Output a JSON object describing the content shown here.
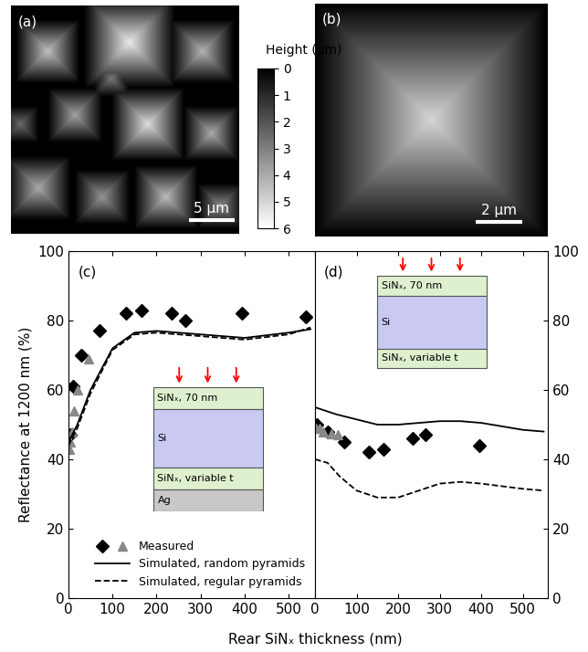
{
  "images": [
    {
      "label": "(a)",
      "scale_bar": {
        "length": 5,
        "label": "5 µm"
      }
    },
    {
      "label": "(b)",
      "scale_bar": {
        "length": 2,
        "label": "2 µm"
      }
    }
  ],
  "colorbar": {
    "label": "Height (µm)",
    "range": [
      0,
      6
    ],
    "ticks": [
      0,
      1,
      2,
      3,
      4,
      5,
      6
    ]
  },
  "chart_data": [
    {
      "type": "line",
      "label": "(c)",
      "xlabel": "Rear SiNₓ thickness (nm)",
      "ylabel": "Reflectance at 1200 nm (%)",
      "xlim": [
        0,
        560
      ],
      "xticks": [
        0,
        100,
        200,
        300,
        400,
        500
      ],
      "ylim": [
        0,
        100
      ],
      "yticks": [
        0,
        20,
        40,
        60,
        80,
        100
      ],
      "legend": "lower right",
      "layers": [
        "SiNₓ, 70 nm",
        "Si",
        "SiNₓ, variable t",
        "Ag"
      ],
      "series": [
        {
          "name": "Measured",
          "type": "scatter",
          "marker": "diamond",
          "color": "#000000",
          "x": [
            5,
            10,
            30,
            70,
            130,
            165,
            235,
            265,
            395,
            540
          ],
          "values": [
            47,
            61,
            70,
            77,
            82,
            83,
            82,
            80,
            82,
            81
          ]
        },
        {
          "name": "Measured",
          "type": "scatter",
          "marker": "triangle",
          "color": "#888888",
          "x": [
            2,
            5,
            8,
            12,
            20,
            45
          ],
          "values": [
            43,
            45,
            48,
            54,
            60,
            69
          ]
        },
        {
          "name": "Simulated, random pyramids",
          "type": "line",
          "line_style": "solid",
          "color": "#000000",
          "x": [
            0,
            20,
            50,
            100,
            150,
            200,
            300,
            400,
            500,
            550
          ],
          "values": [
            45,
            50,
            60,
            72,
            76.5,
            77,
            76,
            75,
            76.5,
            77.5
          ]
        },
        {
          "name": "Simulated, regular pyramids",
          "type": "line",
          "line_style": "dashed",
          "color": "#000000",
          "x": [
            0,
            20,
            50,
            100,
            150,
            200,
            300,
            400,
            500,
            550
          ],
          "values": [
            44,
            49,
            59,
            71.5,
            76,
            76.5,
            75.5,
            74.5,
            76,
            78
          ]
        }
      ]
    },
    {
      "type": "line",
      "label": "(d)",
      "xlim": [
        0,
        560
      ],
      "xticks": [
        0,
        100,
        200,
        300,
        400,
        500
      ],
      "ylim": [
        0,
        100
      ],
      "yticks": [
        0,
        20,
        40,
        60,
        80,
        100
      ],
      "layers": [
        "SiNₓ, 70 nm",
        "Si",
        "SiNₓ, variable t"
      ],
      "series": [
        {
          "name": "Measured",
          "type": "scatter",
          "marker": "diamond",
          "color": "#000000",
          "x": [
            5,
            30,
            70,
            130,
            165,
            235,
            265,
            395
          ],
          "values": [
            50,
            48,
            45,
            42,
            43,
            46,
            47,
            44
          ]
        },
        {
          "name": "Measured",
          "type": "scatter",
          "marker": "triangle",
          "color": "#888888",
          "x": [
            2,
            10,
            20,
            40,
            55
          ],
          "values": [
            49,
            49,
            48,
            47.5,
            47
          ]
        },
        {
          "name": "Simulated, random pyramids",
          "type": "line",
          "line_style": "solid",
          "color": "#000000",
          "x": [
            0,
            50,
            100,
            150,
            200,
            250,
            300,
            350,
            400,
            500,
            550
          ],
          "values": [
            55,
            53,
            51.5,
            50,
            50,
            50.5,
            51,
            51,
            50.5,
            48.5,
            48
          ]
        },
        {
          "name": "Simulated, regular pyramids",
          "type": "line",
          "line_style": "dashed",
          "color": "#000000",
          "x": [
            0,
            30,
            60,
            100,
            150,
            200,
            250,
            300,
            350,
            400,
            500,
            550
          ],
          "values": [
            40,
            39,
            35,
            31,
            29,
            29,
            31,
            33,
            33.5,
            33,
            31.5,
            31
          ]
        }
      ]
    }
  ]
}
